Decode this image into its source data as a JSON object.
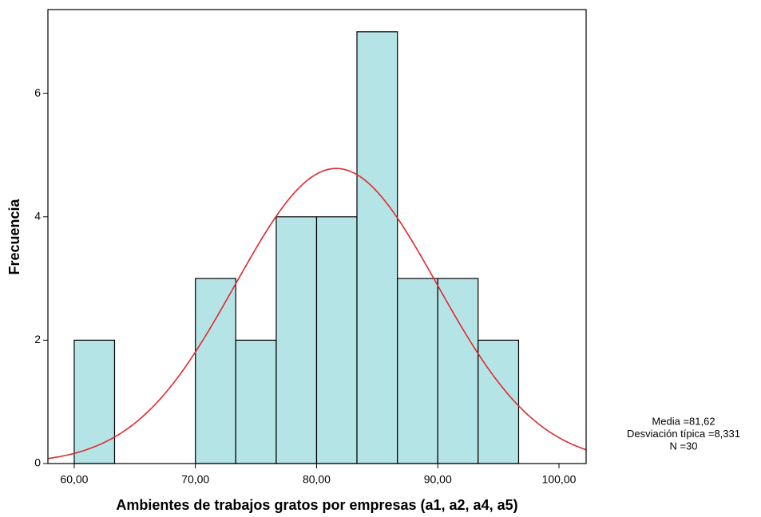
{
  "chart_data": {
    "type": "histogram",
    "x_label": "Ambientes de trabajos gratos por empresas (a1, a2, a4, a5)",
    "y_label": "Frecuencia",
    "bins": [
      60,
      63.33,
      66.67,
      70,
      73.33,
      76.67,
      80,
      83.33,
      86.67,
      90,
      93.33,
      96.67
    ],
    "values": [
      2,
      0,
      0,
      3,
      2,
      4,
      4,
      7,
      3,
      3,
      2
    ],
    "color": "#b5e4e6",
    "edge_color": "#000000",
    "xlim": [
      57.83,
      102.24
    ],
    "ylim": [
      0,
      7.36
    ],
    "xticks": [
      {
        "value": 60,
        "label": "60,00"
      },
      {
        "value": 70,
        "label": "70,00"
      },
      {
        "value": 80,
        "label": "80,00"
      },
      {
        "value": 90,
        "label": "90,00"
      },
      {
        "value": 100,
        "label": "100,00"
      }
    ],
    "yticks": [
      0,
      2,
      4,
      6
    ],
    "normal_curve": {
      "mean": 81.62,
      "sd": 8.331,
      "n": 30,
      "color": "#e0292e"
    },
    "stats_text": [
      "Media =81,62",
      "Desviación típica =8,331",
      "N =30"
    ]
  }
}
